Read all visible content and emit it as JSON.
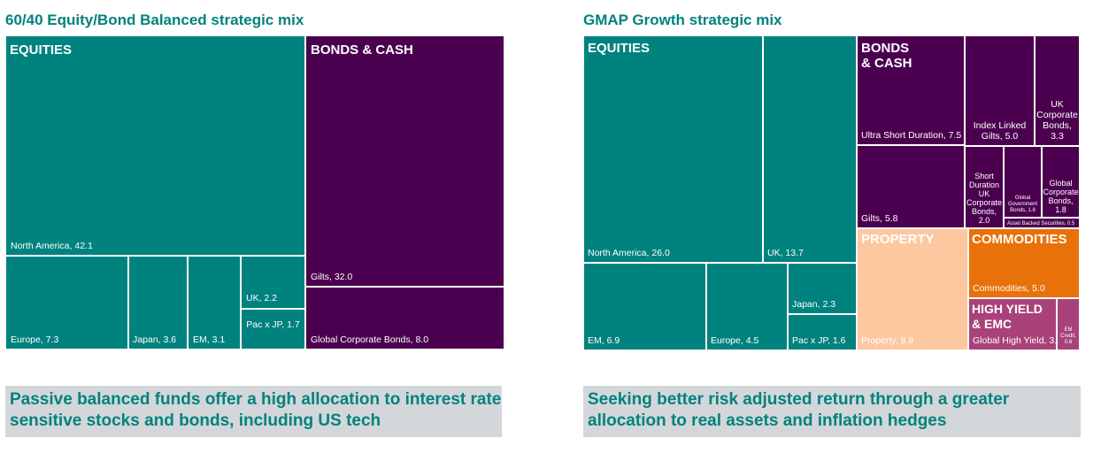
{
  "colors": {
    "equities": "#00827f",
    "bonds": "#4b004f",
    "property": "#fdc7a0",
    "commodities": "#e8710a",
    "high_yield": "#a9427a",
    "caption_bg": "#d3d7d9",
    "title": "#00827f"
  },
  "chart_data": [
    {
      "type": "treemap",
      "title": "60/40 Equity/Bond Balanced strategic mix",
      "groups": [
        {
          "name": "EQUITIES",
          "items": [
            {
              "name": "North America",
              "value": 42.1
            },
            {
              "name": "Europe",
              "value": 7.3
            },
            {
              "name": "Japan",
              "value": 3.6
            },
            {
              "name": "EM",
              "value": 3.1
            },
            {
              "name": "UK",
              "value": 2.2
            },
            {
              "name": "Pac x JP",
              "value": 1.7
            }
          ]
        },
        {
          "name": "BONDS & CASH",
          "items": [
            {
              "name": "Gilts",
              "value": 32.0
            },
            {
              "name": "Global Corporate Bonds",
              "value": 8.0
            }
          ]
        }
      ],
      "caption": "Passive balanced funds offer a high allocation to interest rate sensitive stocks and bonds, including US tech"
    },
    {
      "type": "treemap",
      "title": "GMAP Growth strategic mix",
      "groups": [
        {
          "name": "EQUITIES",
          "items": [
            {
              "name": "North America",
              "value": 26.0
            },
            {
              "name": "UK",
              "value": 13.7
            },
            {
              "name": "EM",
              "value": 6.9
            },
            {
              "name": "Europe",
              "value": 4.5
            },
            {
              "name": "Japan",
              "value": 2.3
            },
            {
              "name": "Pac x JP",
              "value": 1.6
            }
          ]
        },
        {
          "name": "BONDS\n& CASH",
          "items": [
            {
              "name": "Ultra Short Duration",
              "value": 7.5
            },
            {
              "name": "Gilts",
              "value": 5.8
            },
            {
              "name": "Index Linked Gilts",
              "value": 5.0
            },
            {
              "name": "UK Corporate Bonds",
              "value": 3.3
            },
            {
              "name": "Short Duration UK Corporate Bonds",
              "value": 2.0
            },
            {
              "name": "Global Government Bonds",
              "value": 1.8
            },
            {
              "name": "Global Corporate Bonds",
              "value": 1.8
            },
            {
              "name": "Asset Backed Securities",
              "value": 0.5
            }
          ]
        },
        {
          "name": "PROPERTY",
          "items": [
            {
              "name": "Property",
              "value": 8.8
            }
          ]
        },
        {
          "name": "COMMODITIES",
          "items": [
            {
              "name": "Commodities",
              "value": 5.0
            }
          ]
        },
        {
          "name": "HIGH YIELD\n& EMC",
          "items": [
            {
              "name": "Global High Yield",
              "value": 3.0
            },
            {
              "name": "EM Credit",
              "value": 0.8
            }
          ]
        }
      ],
      "caption": "Seeking better risk adjusted return through a greater allocation to real assets and inflation hedges"
    }
  ]
}
